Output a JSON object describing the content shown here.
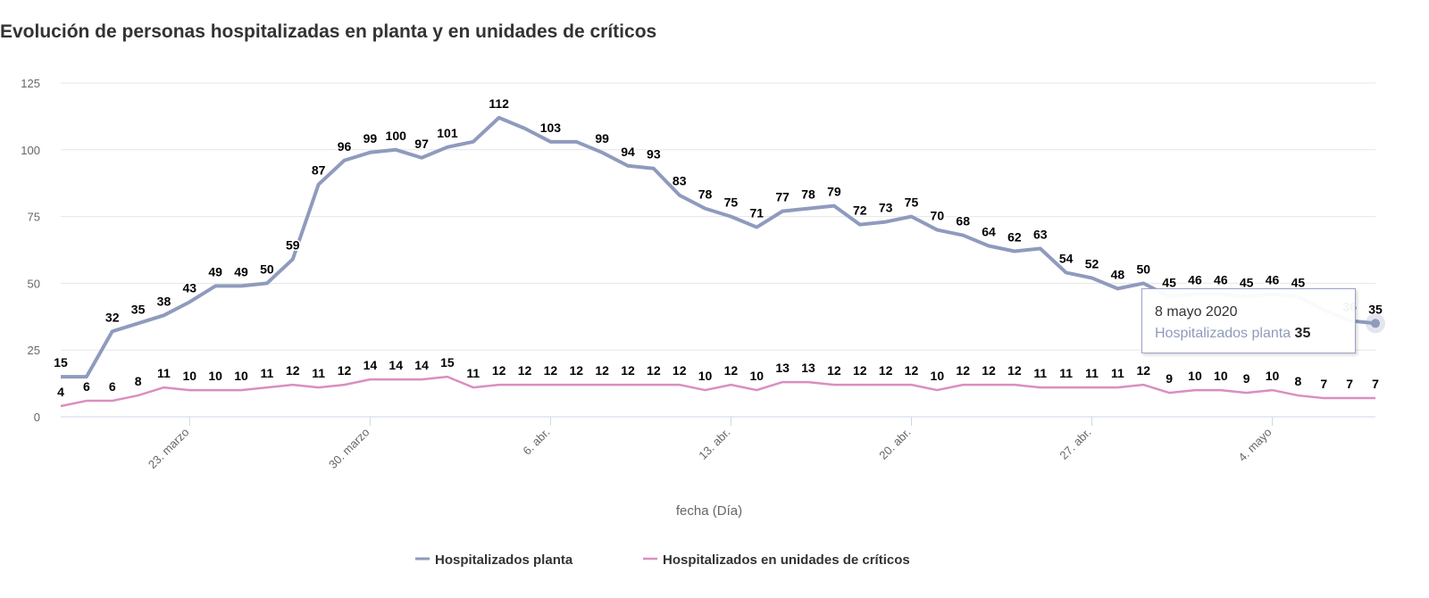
{
  "chart_data": {
    "type": "line",
    "title": "Evolución de personas hospitalizadas en planta y en unidades de críticos",
    "xlabel": "fecha (Día)",
    "ylabel": "",
    "ylim": [
      0,
      125
    ],
    "yticks": [
      0,
      25,
      50,
      75,
      100,
      125
    ],
    "x_start": "18 marzo 2020",
    "x_end": "8 mayo 2020",
    "xticks": [
      {
        "day_index": 5,
        "label": "23. marzo"
      },
      {
        "day_index": 12,
        "label": "30. marzo"
      },
      {
        "day_index": 19,
        "label": "6. abr."
      },
      {
        "day_index": 26,
        "label": "13. abr."
      },
      {
        "day_index": 33,
        "label": "20. abr."
      },
      {
        "day_index": 40,
        "label": "27. abr."
      },
      {
        "day_index": 47,
        "label": "4. mayo"
      }
    ],
    "grid": true,
    "legend": "bottom",
    "series": [
      {
        "name": "Hospitalizados planta",
        "color": "#8f9bbd",
        "values": [
          15,
          15,
          32,
          35,
          38,
          43,
          49,
          49,
          50,
          59,
          87,
          96,
          99,
          100,
          97,
          101,
          103,
          112,
          108,
          103,
          103,
          99,
          94,
          93,
          83,
          78,
          75,
          71,
          77,
          78,
          79,
          72,
          73,
          75,
          70,
          68,
          64,
          62,
          63,
          54,
          52,
          48,
          50,
          45,
          46,
          46,
          45,
          46,
          45,
          40,
          36,
          35
        ],
        "labels_hidden": [
          1,
          16,
          18,
          20,
          49
        ]
      },
      {
        "name": "Hospitalizados en unidades de críticos",
        "color": "#d98fbf",
        "values": [
          4,
          6,
          6,
          8,
          11,
          10,
          10,
          10,
          11,
          12,
          11,
          12,
          14,
          14,
          14,
          15,
          11,
          12,
          12,
          12,
          12,
          12,
          12,
          12,
          12,
          10,
          12,
          10,
          13,
          13,
          12,
          12,
          12,
          12,
          10,
          12,
          12,
          12,
          11,
          11,
          11,
          11,
          12,
          9,
          10,
          10,
          9,
          10,
          8,
          7,
          7,
          7
        ],
        "labels_hidden": []
      }
    ]
  },
  "tooltip": {
    "date": "8 mayo 2020",
    "series": "Hospitalizados planta",
    "value": "35"
  }
}
